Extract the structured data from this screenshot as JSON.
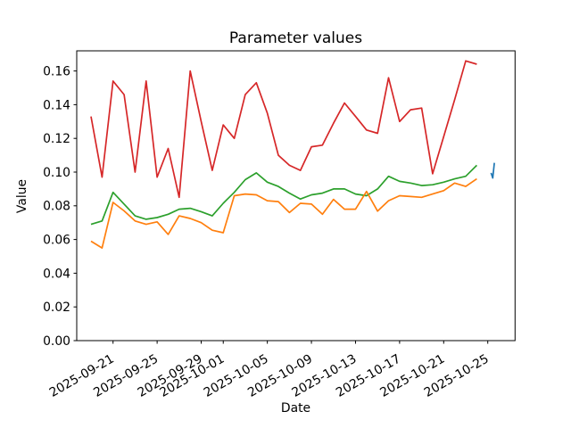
{
  "chart_data": {
    "type": "line",
    "title": "Parameter values",
    "xlabel": "Date",
    "ylabel": "Value",
    "grid": false,
    "legend": "none",
    "background_color": "#ffffff",
    "x_tick_labels": [
      "2025-09-21",
      "2025-09-25",
      "2025-09-29",
      "2025-10-01",
      "2025-10-05",
      "2025-10-09",
      "2025-10-13",
      "2025-10-17",
      "2025-10-21",
      "2025-10-25"
    ],
    "y_tick_labels": [
      "0.00",
      "0.02",
      "0.04",
      "0.06",
      "0.08",
      "0.10",
      "0.12",
      "0.14",
      "0.16"
    ],
    "ylim": [
      0.0,
      0.172
    ],
    "dates": [
      "2025-09-19",
      "2025-09-20",
      "2025-09-21",
      "2025-09-22",
      "2025-09-23",
      "2025-09-24",
      "2025-09-25",
      "2025-09-26",
      "2025-09-27",
      "2025-09-28",
      "2025-09-29",
      "2025-09-30",
      "2025-10-01",
      "2025-10-02",
      "2025-10-03",
      "2025-10-04",
      "2025-10-05",
      "2025-10-06",
      "2025-10-07",
      "2025-10-08",
      "2025-10-09",
      "2025-10-10",
      "2025-10-11",
      "2025-10-12",
      "2025-10-13",
      "2025-10-14",
      "2025-10-15",
      "2025-10-16",
      "2025-10-17",
      "2025-10-18",
      "2025-10-19",
      "2025-10-20",
      "2025-10-21",
      "2025-10-22",
      "2025-10-23",
      "2025-10-24"
    ],
    "series": [
      {
        "name": "series-red",
        "color": "#d62728",
        "values": [
          0.133,
          0.097,
          0.154,
          0.146,
          0.1,
          0.154,
          0.097,
          0.114,
          0.085,
          0.16,
          0.13,
          0.101,
          0.128,
          0.12,
          0.146,
          0.153,
          0.135,
          0.11,
          0.104,
          0.101,
          0.115,
          0.116,
          0.129,
          0.141,
          0.133,
          0.125,
          0.123,
          0.156,
          0.13,
          0.137,
          0.138,
          0.099,
          0.121,
          0.143,
          0.166,
          0.164
        ]
      },
      {
        "name": "series-green",
        "color": "#2ca02c",
        "values": [
          0.069,
          0.071,
          0.088,
          0.081,
          0.074,
          0.072,
          0.073,
          0.075,
          0.078,
          0.0785,
          0.0765,
          0.074,
          0.0815,
          0.088,
          0.0955,
          0.0995,
          0.094,
          0.0915,
          0.0875,
          0.084,
          0.0865,
          0.0875,
          0.09,
          0.09,
          0.087,
          0.086,
          0.09,
          0.0975,
          0.0945,
          0.0935,
          0.092,
          0.0925,
          0.094,
          0.096,
          0.0975,
          0.104
        ]
      },
      {
        "name": "series-orange",
        "color": "#ff7f0e",
        "values": [
          0.059,
          0.055,
          0.082,
          0.077,
          0.071,
          0.069,
          0.0705,
          0.063,
          0.074,
          0.0725,
          0.07,
          0.0655,
          0.064,
          0.086,
          0.087,
          0.0865,
          0.083,
          0.0825,
          0.076,
          0.0815,
          0.081,
          0.075,
          0.0838,
          0.078,
          0.078,
          0.0885,
          0.0768,
          0.083,
          0.086,
          0.0855,
          0.085,
          0.087,
          0.089,
          0.0935,
          0.0915,
          0.096
        ]
      },
      {
        "name": "series-blue",
        "color": "#1f77b4",
        "dates": [
          "2025-10-25",
          "2025-10-25",
          "2025-10-25"
        ],
        "values": [
          0.0995,
          0.0965,
          0.1055
        ]
      }
    ]
  }
}
